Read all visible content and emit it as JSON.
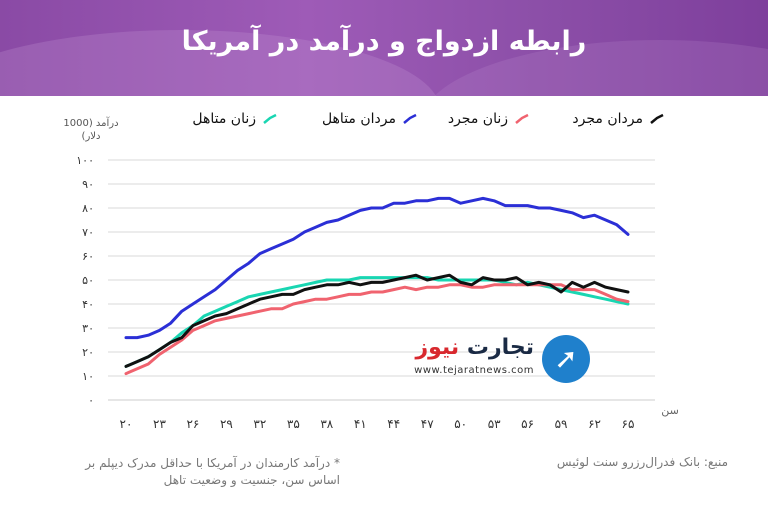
{
  "title": "رابطه ازدواج و درآمد در آمریکا",
  "legend": [
    {
      "label": "مردان مجرد",
      "color": "#111111"
    },
    {
      "label": "زنان مجرد",
      "color": "#f0636f"
    },
    {
      "label": "مردان متاهل",
      "color": "#2b2fd6"
    },
    {
      "label": "زنان متاهل",
      "color": "#19d6b2"
    }
  ],
  "brand": {
    "name_part1": "تجارت",
    "name_part2": "نیوز",
    "url": "www.tejaratnews.com"
  },
  "footnote": "* درآمد کارمندان در آمریکا با حداقل مدرک دیپلم بر اساس سن، جنسیت و وضعیت تاهل",
  "source": "منبع: بانک فدرال‌رزرو سنت لوئیس",
  "chart_data": {
    "type": "line",
    "ylabel": "درآمد (1000 دلار)",
    "xlabel": "سن",
    "ylim": [
      0,
      100
    ],
    "xlim": [
      20,
      65
    ],
    "grid": true,
    "legend_position": "top",
    "y_tick_labels": [
      "۰",
      "۱۰",
      "۲۰",
      "۳۰",
      "۴۰",
      "۵۰",
      "۶۰",
      "۷۰",
      "۸۰",
      "۹۰",
      "۱۰۰"
    ],
    "x_tick_labels": [
      "۲۰",
      "۲۳",
      "۲۶",
      "۲۹",
      "۳۲",
      "۳۵",
      "۳۸",
      "۴۱",
      "۴۴",
      "۴۷",
      "۵۰",
      "۵۳",
      "۵۶",
      "۵۹",
      "۶۲",
      "۶۵"
    ],
    "x": [
      20,
      21,
      22,
      23,
      24,
      25,
      26,
      27,
      28,
      29,
      30,
      31,
      32,
      33,
      34,
      35,
      36,
      37,
      38,
      39,
      40,
      41,
      42,
      43,
      44,
      45,
      46,
      47,
      48,
      49,
      50,
      51,
      52,
      53,
      54,
      55,
      56,
      57,
      58,
      59,
      60,
      61,
      62,
      63,
      64,
      65
    ],
    "series": [
      {
        "name": "مردان مجرد",
        "color": "#111111",
        "values": [
          14,
          16,
          18,
          21,
          24,
          26,
          31,
          33,
          35,
          36,
          38,
          40,
          42,
          43,
          44,
          44,
          46,
          47,
          48,
          48,
          49,
          48,
          49,
          49,
          50,
          51,
          52,
          50,
          51,
          52,
          49,
          48,
          51,
          50,
          50,
          51,
          48,
          49,
          48,
          45,
          49,
          47,
          49,
          47,
          46,
          45
        ]
      },
      {
        "name": "زنان مجرد",
        "color": "#f0636f",
        "values": [
          11,
          13,
          15,
          19,
          22,
          25,
          29,
          31,
          33,
          34,
          35,
          36,
          37,
          38,
          38,
          40,
          41,
          42,
          42,
          43,
          44,
          44,
          45,
          45,
          46,
          47,
          46,
          47,
          47,
          48,
          48,
          47,
          47,
          48,
          48,
          48,
          48,
          48,
          48,
          48,
          46,
          46,
          46,
          44,
          42,
          41
        ]
      },
      {
        "name": "مردان متاهل",
        "color": "#2b2fd6",
        "values": [
          26,
          26,
          27,
          29,
          32,
          37,
          40,
          43,
          46,
          50,
          54,
          57,
          61,
          63,
          65,
          67,
          70,
          72,
          74,
          75,
          77,
          79,
          80,
          80,
          82,
          82,
          83,
          83,
          84,
          84,
          82,
          83,
          84,
          83,
          81,
          81,
          81,
          80,
          80,
          79,
          78,
          76,
          77,
          75,
          73,
          69
        ]
      },
      {
        "name": "زنان متاهل",
        "color": "#19d6b2",
        "values": [
          14,
          16,
          18,
          21,
          24,
          28,
          31,
          35,
          37,
          39,
          41,
          43,
          44,
          45,
          46,
          47,
          48,
          49,
          50,
          50,
          50,
          51,
          51,
          51,
          51,
          51,
          51,
          51,
          50,
          50,
          50,
          50,
          50,
          50,
          49,
          48,
          49,
          48,
          47,
          46,
          45,
          44,
          43,
          42,
          41,
          40
        ]
      }
    ]
  }
}
